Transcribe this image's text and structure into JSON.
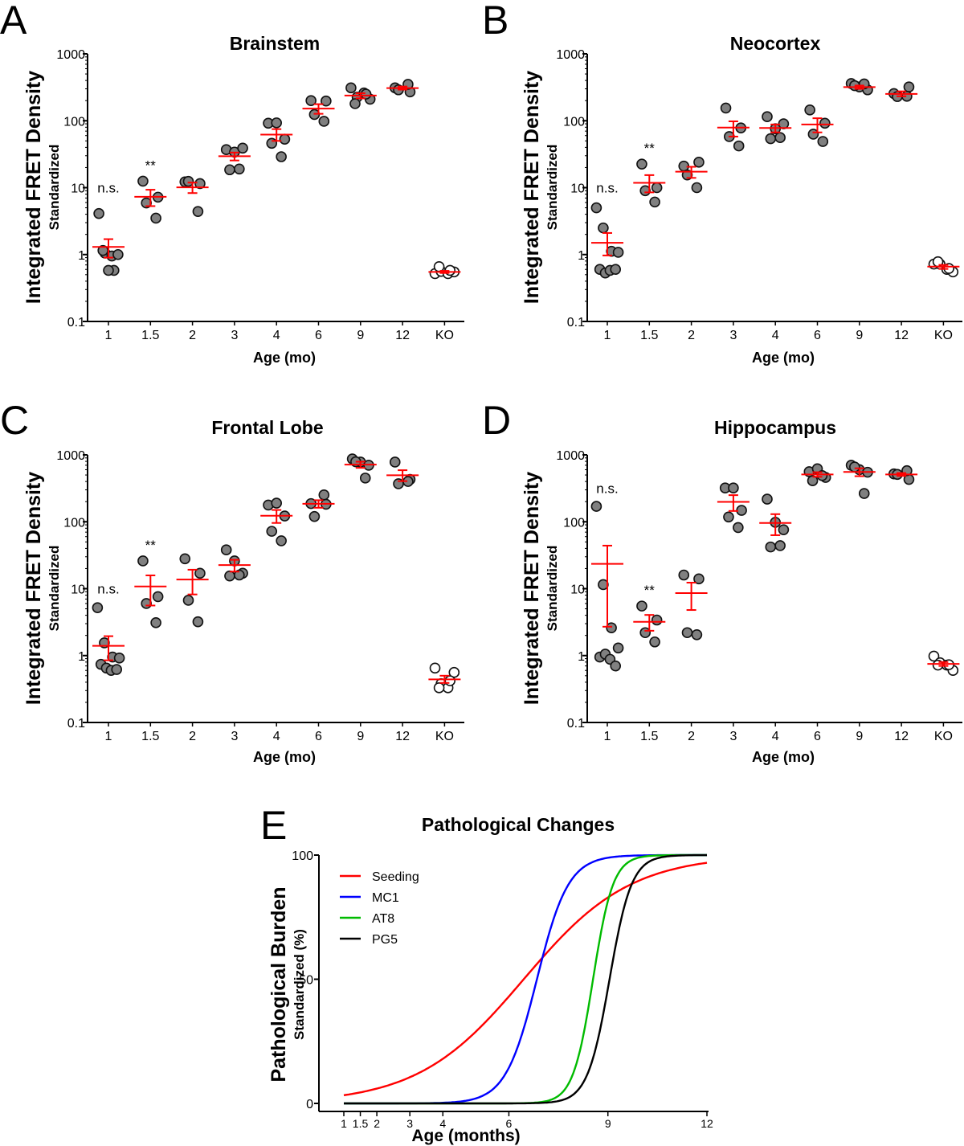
{
  "panels": [
    {
      "letter": "A",
      "title": "Brainstem",
      "ylabel": "Integrated FRET Density",
      "ysublabel": "Standardized",
      "xlabel": "Age (mo)"
    },
    {
      "letter": "B",
      "title": "Neocortex",
      "ylabel": "Integrated FRET Density",
      "ysublabel": "Standardized",
      "xlabel": "Age (mo)"
    },
    {
      "letter": "C",
      "title": "Frontal Lobe",
      "ylabel": "Integrated FRET Density",
      "ysublabel": "Standardized",
      "xlabel": "Age (mo)"
    },
    {
      "letter": "D",
      "title": "Hippocampus",
      "ylabel": "Integrated FRET Density",
      "ysublabel": "Standardized",
      "xlabel": "Age (mo)"
    },
    {
      "letter": "E",
      "title": "Pathological Changes",
      "ylabel": "Pathological Burden",
      "ysublabel": "Standardized (%)",
      "xlabel": "Age (months)"
    }
  ],
  "colors": {
    "mean_sem": "#ff0000",
    "point_fill": "#808080",
    "ko_fill": "#ffffff",
    "axis": "#000000"
  },
  "chart_data": [
    {
      "type": "scatter",
      "title": "Brainstem",
      "xlabel": "Age (mo)",
      "ylabel": "Integrated FRET Density Standardized",
      "yscale": "log",
      "ylim": [
        0.1,
        1000
      ],
      "yticks": [
        "1000",
        "100",
        "10",
        "1",
        "0.1"
      ],
      "ytick_values": [
        1000,
        100,
        10,
        1,
        0.1
      ],
      "categories": [
        "1",
        "1.5",
        "2",
        "3",
        "4",
        "6",
        "9",
        "12",
        "KO"
      ],
      "groups": [
        {
          "category": "1",
          "points": [
            4.1,
            1.05,
            0.95,
            1.0,
            1.15,
            0.58,
            0.58
          ],
          "mean": 1.3,
          "sem_low": 0.9,
          "sem_high": 1.7,
          "annotation": "n.s."
        },
        {
          "category": "1.5",
          "points": [
            12.5,
            7.2,
            5.9,
            3.5
          ],
          "mean": 7.3,
          "sem_low": 5.3,
          "sem_high": 9.3,
          "annotation": "**"
        },
        {
          "category": "2",
          "points": [
            12.2,
            11.5,
            12.4,
            4.4
          ],
          "mean": 10.1,
          "sem_low": 8.3,
          "sem_high": 11.9
        },
        {
          "category": "3",
          "points": [
            37,
            34,
            39,
            18.5,
            19
          ],
          "mean": 29.5,
          "sem_low": 25.5,
          "sem_high": 33.5
        },
        {
          "category": "4",
          "points": [
            92,
            93,
            53,
            46,
            29
          ],
          "mean": 62,
          "sem_low": 50,
          "sem_high": 75
        },
        {
          "category": "6",
          "points": [
            200,
            197,
            124,
            98
          ],
          "mean": 152,
          "sem_low": 127,
          "sem_high": 177
        },
        {
          "category": "9",
          "points": [
            310,
            225,
            260,
            210,
            180,
            250
          ],
          "mean": 238,
          "sem_low": 216,
          "sem_high": 258
        },
        {
          "category": "12",
          "points": [
            310,
            270,
            290,
            350
          ],
          "mean": 308,
          "sem_low": 292,
          "sem_high": 325
        },
        {
          "category": "KO",
          "points": [
            0.52,
            0.56,
            0.52,
            0.55,
            0.66,
            0.58
          ],
          "mean": 0.55,
          "sem_low": 0.53,
          "sem_high": 0.57,
          "open_markers": true
        }
      ]
    },
    {
      "type": "scatter",
      "title": "Neocortex",
      "xlabel": "Age (mo)",
      "ylabel": "Integrated FRET Density Standardized",
      "yscale": "log",
      "ylim": [
        0.1,
        1000
      ],
      "yticks": [
        "1000",
        "100",
        "10",
        "1",
        "0.1"
      ],
      "ytick_values": [
        1000,
        100,
        10,
        1,
        0.1
      ],
      "categories": [
        "1",
        "1.5",
        "2",
        "3",
        "4",
        "6",
        "9",
        "12",
        "KO"
      ],
      "groups": [
        {
          "category": "1",
          "points": [
            5.0,
            2.5,
            1.12,
            1.08,
            0.6,
            0.53,
            0.58,
            0.6
          ],
          "mean": 1.5,
          "sem_low": 0.97,
          "sem_high": 2.1,
          "annotation": "n.s."
        },
        {
          "category": "1.5",
          "points": [
            22.5,
            10,
            9,
            6.1
          ],
          "mean": 11.8,
          "sem_low": 8.5,
          "sem_high": 15.4,
          "annotation": "**"
        },
        {
          "category": "2",
          "points": [
            21,
            24,
            15.5,
            10
          ],
          "mean": 17.3,
          "sem_low": 14,
          "sem_high": 20.5
        },
        {
          "category": "3",
          "points": [
            155,
            78,
            58,
            42
          ],
          "mean": 79,
          "sem_low": 58,
          "sem_high": 98
        },
        {
          "category": "4",
          "points": [
            115,
            76,
            90,
            54,
            56
          ],
          "mean": 78,
          "sem_low": 67,
          "sem_high": 88
        },
        {
          "category": "6",
          "points": [
            145,
            92,
            63,
            49
          ],
          "mean": 88,
          "sem_low": 67,
          "sem_high": 109
        },
        {
          "category": "9",
          "points": [
            360,
            320,
            290,
            335,
            355
          ],
          "mean": 318,
          "sem_low": 300,
          "sem_high": 336
        },
        {
          "category": "12",
          "points": [
            255,
            320,
            230,
            232
          ],
          "mean": 252,
          "sem_low": 232,
          "sem_high": 275
        },
        {
          "category": "KO",
          "points": [
            0.72,
            0.72,
            0.6,
            0.55,
            0.78,
            0.62
          ],
          "mean": 0.66,
          "sem_low": 0.61,
          "sem_high": 0.7,
          "open_markers": true
        }
      ]
    },
    {
      "type": "scatter",
      "title": "Frontal Lobe",
      "xlabel": "Age (mo)",
      "ylabel": "Integrated FRET Density Standardized",
      "yscale": "log",
      "ylim": [
        0.1,
        1000
      ],
      "yticks": [
        "1000",
        "100",
        "10",
        "1",
        "0.1"
      ],
      "ytick_values": [
        1000,
        100,
        10,
        1,
        0.1
      ],
      "categories": [
        "1",
        "1.5",
        "2",
        "3",
        "4",
        "6",
        "9",
        "12",
        "KO"
      ],
      "groups": [
        {
          "category": "1",
          "points": [
            5.2,
            1.55,
            0.95,
            0.92,
            0.74,
            0.65,
            0.6,
            0.62
          ],
          "mean": 1.4,
          "sem_low": 0.85,
          "sem_high": 1.95,
          "annotation": "n.s."
        },
        {
          "category": "1.5",
          "points": [
            26,
            7.6,
            6.0,
            3.1
          ],
          "mean": 10.8,
          "sem_low": 5.6,
          "sem_high": 15.8,
          "annotation": "**"
        },
        {
          "category": "2",
          "points": [
            28,
            17,
            6.7,
            3.2
          ],
          "mean": 13.7,
          "sem_low": 8.2,
          "sem_high": 19.2
        },
        {
          "category": "3",
          "points": [
            38,
            26,
            17,
            15.5,
            16
          ],
          "mean": 22.5,
          "sem_low": 18,
          "sem_high": 27
        },
        {
          "category": "4",
          "points": [
            178,
            190,
            122,
            72,
            52
          ],
          "mean": 123,
          "sem_low": 96,
          "sem_high": 150
        },
        {
          "category": "6",
          "points": [
            187,
            183,
            120,
            252
          ],
          "mean": 186,
          "sem_low": 162,
          "sem_high": 210
        },
        {
          "category": "9",
          "points": [
            870,
            780,
            700,
            790,
            450
          ],
          "mean": 715,
          "sem_low": 640,
          "sem_high": 790
        },
        {
          "category": "12",
          "points": [
            780,
            430,
            370,
            400
          ],
          "mean": 495,
          "sem_low": 405,
          "sem_high": 590
        },
        {
          "category": "KO",
          "points": [
            0.65,
            0.38,
            0.33,
            0.56,
            0.33,
            0.42
          ],
          "mean": 0.44,
          "sem_low": 0.39,
          "sem_high": 0.5,
          "open_markers": true
        }
      ]
    },
    {
      "type": "scatter",
      "title": "Hippocampus",
      "xlabel": "Age (mo)",
      "ylabel": "Integrated FRET Density Standardized",
      "yscale": "log",
      "ylim": [
        0.1,
        1000
      ],
      "yticks": [
        "1000",
        "100",
        "10",
        "1",
        "0.1"
      ],
      "ytick_values": [
        1000,
        100,
        10,
        1,
        0.1
      ],
      "categories": [
        "1",
        "1.5",
        "2",
        "3",
        "4",
        "6",
        "9",
        "12",
        "KO"
      ],
      "groups": [
        {
          "category": "1",
          "points": [
            170,
            11.5,
            2.6,
            1.3,
            0.95,
            1.05,
            0.88,
            0.7
          ],
          "mean": 23.5,
          "sem_low": 2.7,
          "sem_high": 44,
          "annotation": "n.s."
        },
        {
          "category": "1.5",
          "points": [
            5.5,
            3.4,
            2.2,
            1.6
          ],
          "mean": 3.2,
          "sem_low": 2.35,
          "sem_high": 4.05,
          "annotation": "**"
        },
        {
          "category": "2",
          "points": [
            16,
            14,
            2.2,
            2.05
          ],
          "mean": 8.6,
          "sem_low": 4.8,
          "sem_high": 12.3
        },
        {
          "category": "3",
          "points": [
            320,
            320,
            148,
            118,
            82
          ],
          "mean": 198,
          "sem_low": 145,
          "sem_high": 250
        },
        {
          "category": "4",
          "points": [
            218,
            98,
            76,
            42,
            44
          ],
          "mean": 96,
          "sem_low": 63,
          "sem_high": 130
        },
        {
          "category": "6",
          "points": [
            560,
            620,
            460,
            410,
            490
          ],
          "mean": 510,
          "sem_low": 470,
          "sem_high": 550
        },
        {
          "category": "9",
          "points": [
            700,
            600,
            550,
            660,
            265
          ],
          "mean": 555,
          "sem_low": 480,
          "sem_high": 630
        },
        {
          "category": "12",
          "points": [
            520,
            430,
            510,
            580
          ],
          "mean": 510,
          "sem_low": 485,
          "sem_high": 535
        },
        {
          "category": "KO",
          "points": [
            0.98,
            0.78,
            0.72,
            0.6,
            0.72,
            0.73
          ],
          "mean": 0.75,
          "sem_low": 0.7,
          "sem_high": 0.8,
          "open_markers": true
        }
      ]
    },
    {
      "type": "line",
      "title": "Pathological Changes",
      "xlabel": "Age (months)",
      "ylabel": "Pathological Burden Standardized (%)",
      "xlim": [
        1,
        12
      ],
      "ylim": [
        0,
        100
      ],
      "xticks": [
        "1",
        "1.5",
        "2",
        "3",
        "4",
        "6",
        "9",
        "12"
      ],
      "xtick_values": [
        1,
        1.5,
        2,
        3,
        4,
        6,
        9,
        12
      ],
      "yticks": [
        "100",
        "50",
        "0"
      ],
      "ytick_values": [
        100,
        50,
        0
      ],
      "legend_position": "top-left",
      "series": [
        {
          "name": "Seeding",
          "color": "#ff0000",
          "model": "logistic",
          "midpoint": 6.45,
          "rate": 0.62
        },
        {
          "name": "MC1",
          "color": "#0000ff",
          "model": "logistic",
          "midpoint": 6.85,
          "rate": 2.1
        },
        {
          "name": "AT8",
          "color": "#00bb00",
          "model": "logistic",
          "midpoint": 8.55,
          "rate": 3.3
        },
        {
          "name": "PG5",
          "color": "#000000",
          "model": "logistic",
          "midpoint": 9.05,
          "rate": 3.0
        }
      ]
    }
  ]
}
